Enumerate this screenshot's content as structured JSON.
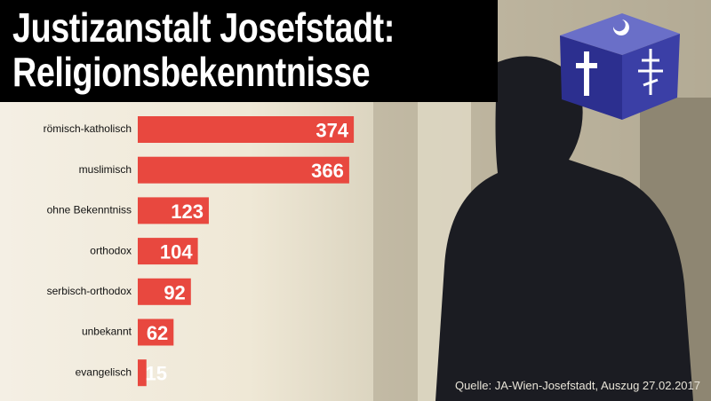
{
  "chart_data": {
    "type": "bar",
    "orientation": "horizontal",
    "title": "Justizanstalt Josefstadt: Religionsbekenntnisse",
    "categories": [
      "römisch-katholisch",
      "muslimisch",
      "ohne Bekenntniss",
      "orthodox",
      "serbisch-orthodox",
      "unbekannt",
      "evangelisch"
    ],
    "values": [
      374,
      366,
      123,
      104,
      92,
      62,
      15
    ],
    "color": "#e8483f",
    "source": "Quelle: JA-Wien-Josefstadt, Auszug 27.02.2017"
  }
}
